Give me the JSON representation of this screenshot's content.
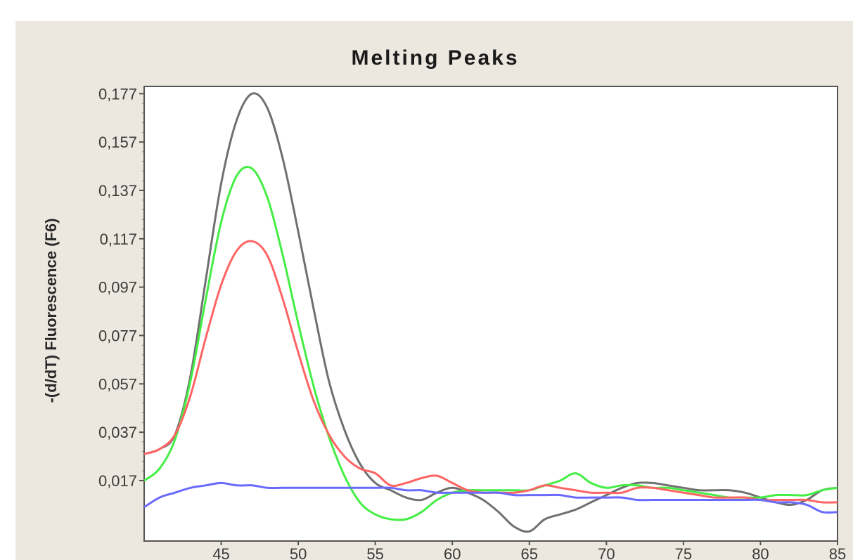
{
  "chart_data": {
    "type": "line",
    "title": "Melting Peaks",
    "xlabel": "",
    "ylabel": "-(d/dT) Fluorescence (F6)",
    "xlim": [
      40,
      85
    ],
    "ylim": [
      -0.008,
      0.18
    ],
    "xticks": [
      45,
      50,
      55,
      60,
      65,
      70,
      75,
      80,
      85
    ],
    "yticks": [
      0.017,
      0.037,
      0.057,
      0.077,
      0.097,
      0.117,
      0.137,
      0.157,
      0.177
    ],
    "ytick_labels": [
      "0,017",
      "0,037",
      "0,057",
      "0,077",
      "0,097",
      "0,117",
      "0,137",
      "0,157",
      "0,177"
    ],
    "grid": false,
    "series": [
      {
        "color": "#707070",
        "x": [
          40,
          41,
          42,
          43,
          44,
          45,
          46,
          47,
          48,
          49,
          50,
          51,
          52,
          53,
          54,
          55,
          56,
          57,
          58,
          59,
          60,
          61,
          62,
          63,
          64,
          65,
          66,
          67,
          68,
          69,
          70,
          71,
          72,
          73,
          74,
          75,
          76,
          77,
          78,
          79,
          80,
          81,
          82,
          83,
          84,
          85
        ],
        "y": [
          0.028,
          0.03,
          0.036,
          0.06,
          0.1,
          0.14,
          0.166,
          0.177,
          0.171,
          0.15,
          0.12,
          0.088,
          0.058,
          0.038,
          0.024,
          0.016,
          0.013,
          0.01,
          0.009,
          0.012,
          0.014,
          0.012,
          0.009,
          0.004,
          -0.002,
          -0.004,
          0.001,
          0.003,
          0.005,
          0.008,
          0.011,
          0.014,
          0.016,
          0.016,
          0.015,
          0.014,
          0.013,
          0.013,
          0.013,
          0.012,
          0.01,
          0.008,
          0.007,
          0.009,
          0.013,
          0.014
        ]
      },
      {
        "color": "#44ee44",
        "x": [
          40,
          41,
          42,
          43,
          44,
          45,
          46,
          47,
          48,
          49,
          50,
          51,
          52,
          53,
          54,
          55,
          56,
          57,
          58,
          59,
          60,
          61,
          62,
          63,
          64,
          65,
          66,
          67,
          68,
          69,
          70,
          71,
          72,
          73,
          74,
          75,
          76,
          77,
          78,
          79,
          80,
          81,
          82,
          83,
          84,
          85
        ],
        "y": [
          0.017,
          0.022,
          0.034,
          0.058,
          0.092,
          0.124,
          0.143,
          0.146,
          0.134,
          0.11,
          0.082,
          0.056,
          0.035,
          0.019,
          0.008,
          0.003,
          0.001,
          0.001,
          0.004,
          0.009,
          0.012,
          0.013,
          0.013,
          0.013,
          0.013,
          0.013,
          0.015,
          0.017,
          0.02,
          0.016,
          0.014,
          0.015,
          0.015,
          0.014,
          0.014,
          0.013,
          0.012,
          0.011,
          0.01,
          0.01,
          0.01,
          0.011,
          0.011,
          0.011,
          0.013,
          0.014
        ]
      },
      {
        "color": "#ff6464",
        "x": [
          40,
          41,
          42,
          43,
          44,
          45,
          46,
          47,
          48,
          49,
          50,
          51,
          52,
          53,
          54,
          55,
          56,
          57,
          58,
          59,
          60,
          61,
          62,
          63,
          64,
          65,
          66,
          67,
          68,
          69,
          70,
          71,
          72,
          73,
          74,
          75,
          76,
          77,
          78,
          79,
          80,
          81,
          82,
          83,
          84,
          85
        ],
        "y": [
          0.028,
          0.03,
          0.036,
          0.052,
          0.076,
          0.098,
          0.112,
          0.116,
          0.11,
          0.092,
          0.07,
          0.05,
          0.036,
          0.027,
          0.022,
          0.02,
          0.015,
          0.016,
          0.018,
          0.019,
          0.016,
          0.013,
          0.012,
          0.012,
          0.012,
          0.013,
          0.015,
          0.014,
          0.013,
          0.012,
          0.012,
          0.012,
          0.014,
          0.014,
          0.013,
          0.012,
          0.011,
          0.01,
          0.01,
          0.01,
          0.009,
          0.009,
          0.009,
          0.009,
          0.008,
          0.008
        ]
      },
      {
        "color": "#6a6aff",
        "x": [
          40,
          41,
          42,
          43,
          44,
          45,
          46,
          47,
          48,
          49,
          50,
          51,
          52,
          53,
          54,
          55,
          56,
          57,
          58,
          59,
          60,
          61,
          62,
          63,
          64,
          65,
          66,
          67,
          68,
          69,
          70,
          71,
          72,
          73,
          74,
          75,
          76,
          77,
          78,
          79,
          80,
          81,
          82,
          83,
          84,
          85
        ],
        "y": [
          0.006,
          0.01,
          0.012,
          0.014,
          0.015,
          0.016,
          0.015,
          0.015,
          0.014,
          0.014,
          0.014,
          0.014,
          0.014,
          0.014,
          0.014,
          0.014,
          0.014,
          0.013,
          0.013,
          0.012,
          0.012,
          0.012,
          0.012,
          0.012,
          0.011,
          0.011,
          0.011,
          0.011,
          0.01,
          0.01,
          0.01,
          0.01,
          0.009,
          0.009,
          0.009,
          0.009,
          0.009,
          0.009,
          0.009,
          0.009,
          0.009,
          0.008,
          0.008,
          0.007,
          0.004,
          0.004
        ]
      }
    ]
  }
}
